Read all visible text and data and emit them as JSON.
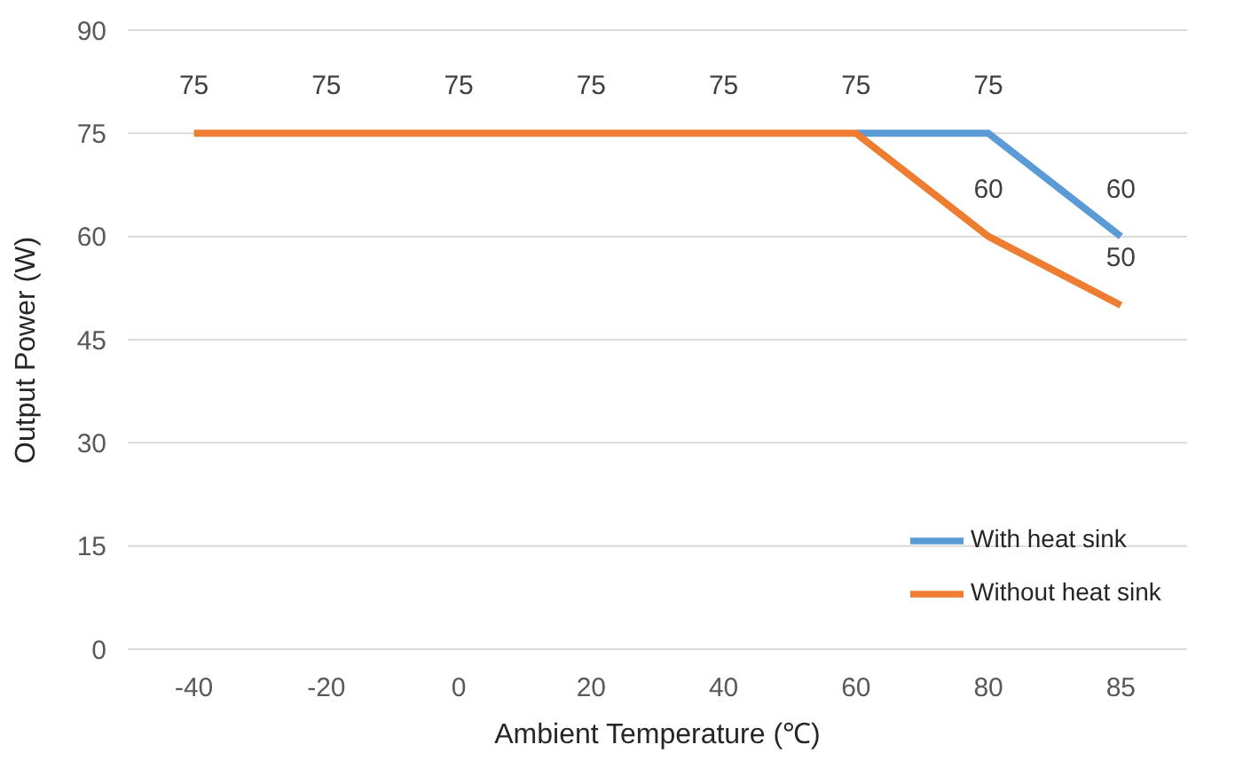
{
  "chart_data": {
    "type": "line",
    "xlabel": "Ambient Temperature (℃)",
    "ylabel": "Output Power (W)",
    "categories": [
      "-40",
      "-20",
      "0",
      "20",
      "40",
      "60",
      "80",
      "85"
    ],
    "series": [
      {
        "name": "With heat sink",
        "color": "#5b9bd5",
        "values": [
          null,
          null,
          null,
          null,
          null,
          75,
          75,
          60
        ],
        "value_labels": [
          null,
          null,
          null,
          null,
          null,
          null,
          "75",
          "60"
        ]
      },
      {
        "name": "Without heat sink",
        "color": "#ed7d31",
        "values": [
          75,
          75,
          75,
          75,
          75,
          75,
          60,
          50
        ],
        "value_labels": [
          "75",
          "75",
          "75",
          "75",
          "75",
          "75",
          "60",
          "50"
        ]
      }
    ],
    "ylim": [
      0,
      90
    ],
    "yticks": [
      0,
      15,
      30,
      45,
      60,
      75,
      90
    ],
    "grid": "y",
    "legend": "bottom right",
    "marker": "none",
    "line_style": "solid"
  }
}
